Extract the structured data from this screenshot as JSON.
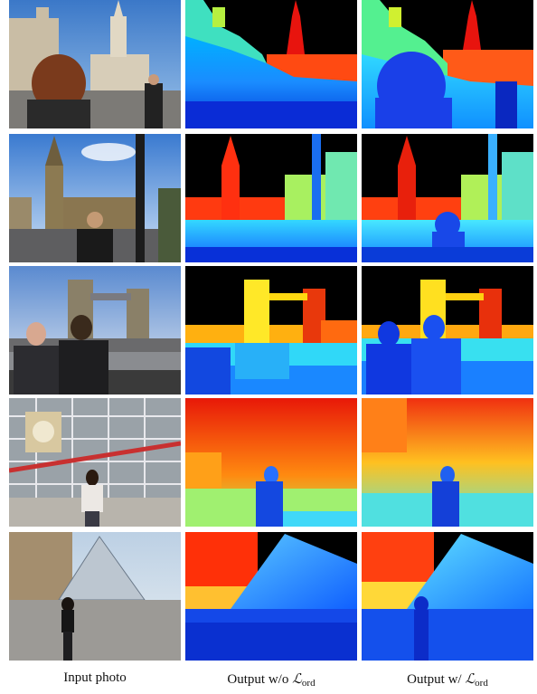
{
  "figure": {
    "captions": {
      "input": "Input photo",
      "without_prefix": "Output w/o ",
      "with_prefix": "Output w/ ",
      "loss_symbol": "ℒ",
      "loss_subscript": "ord"
    },
    "rows": [
      {
        "scene": "Trafalgar Square church with woman photographing"
      },
      {
        "scene": "Big Ben with man"
      },
      {
        "scene": "Tower Bridge with two men"
      },
      {
        "scene": "Centre Pompidou with woman"
      },
      {
        "scene": "Louvre pyramid with woman"
      }
    ]
  }
}
